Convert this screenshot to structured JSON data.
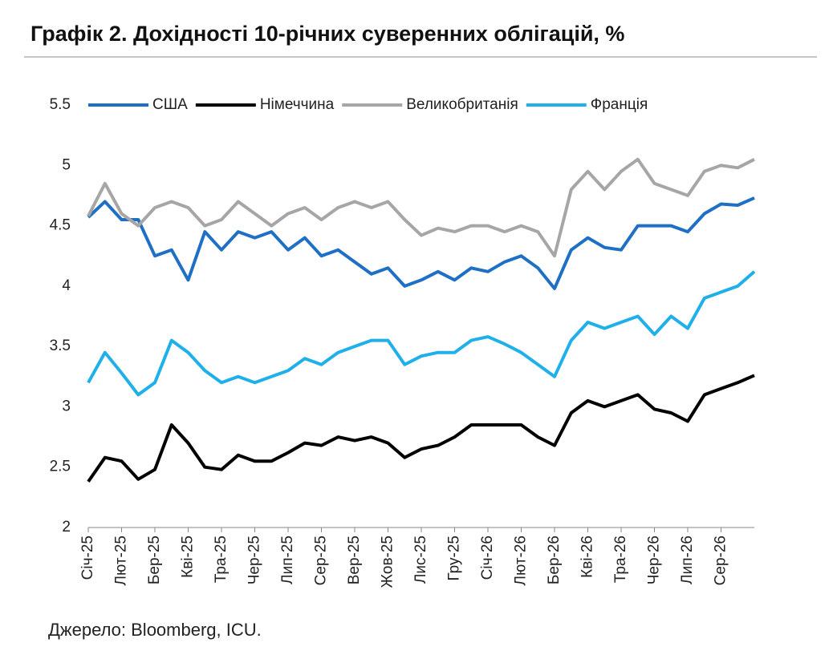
{
  "chart_data": {
    "type": "line",
    "title": "Графік 2. Дохідності 10-річних суверенних облігацій, %",
    "source": "Джерело: Bloomberg, ICU.",
    "categories": [
      "Січ-25",
      null,
      "Лют-25",
      null,
      "Бер-25",
      null,
      "Кві-25",
      null,
      "Тра-25",
      null,
      "Чер-25",
      null,
      "Лип-25",
      null,
      "Сер-25",
      null,
      "Вер-25",
      null,
      "Жов-25",
      null,
      "Лис-25",
      null,
      "Гру-25",
      null,
      "Січ-26",
      null,
      "Лют-26",
      null,
      "Бер-26",
      null,
      "Кві-26",
      null,
      "Тра-26",
      null,
      "Чер-26",
      null,
      "Лип-26",
      null,
      "Сер-26",
      null,
      null
    ],
    "series": [
      {
        "name": "США",
        "color": "#1f6fc5",
        "values": [
          4.57,
          4.7,
          4.55,
          4.55,
          4.25,
          4.3,
          4.05,
          4.45,
          4.3,
          4.45,
          4.4,
          4.45,
          4.3,
          4.4,
          4.25,
          4.3,
          4.2,
          4.1,
          4.15,
          4.0,
          4.05,
          4.12,
          4.05,
          4.15,
          4.12,
          4.2,
          4.25,
          4.15,
          3.98,
          4.3,
          4.4,
          4.32,
          4.3,
          4.5,
          4.5,
          4.5,
          4.45,
          4.6,
          4.68,
          4.67,
          4.73
        ]
      },
      {
        "name": "Німеччина",
        "color": "#000000",
        "values": [
          2.38,
          2.58,
          2.55,
          2.4,
          2.48,
          2.85,
          2.7,
          2.5,
          2.48,
          2.6,
          2.55,
          2.55,
          2.62,
          2.7,
          2.68,
          2.75,
          2.72,
          2.75,
          2.7,
          2.58,
          2.65,
          2.68,
          2.75,
          2.85,
          2.85,
          2.85,
          2.85,
          2.75,
          2.68,
          2.95,
          3.05,
          3.0,
          3.05,
          3.1,
          2.98,
          2.95,
          2.88,
          3.1,
          3.15,
          3.2,
          3.26
        ]
      },
      {
        "name": "Великобританія",
        "color": "#a6a6a6",
        "values": [
          4.58,
          4.85,
          4.6,
          4.5,
          4.65,
          4.7,
          4.65,
          4.5,
          4.55,
          4.7,
          4.6,
          4.5,
          4.6,
          4.65,
          4.55,
          4.65,
          4.7,
          4.65,
          4.7,
          4.55,
          4.42,
          4.48,
          4.45,
          4.5,
          4.5,
          4.45,
          4.5,
          4.45,
          4.25,
          4.8,
          4.95,
          4.8,
          4.95,
          5.05,
          4.85,
          4.8,
          4.75,
          4.95,
          5.0,
          4.98,
          5.05
        ]
      },
      {
        "name": "Франція",
        "color": "#1fb0ea",
        "values": [
          3.2,
          3.45,
          3.28,
          3.1,
          3.2,
          3.55,
          3.45,
          3.3,
          3.2,
          3.25,
          3.2,
          3.25,
          3.3,
          3.4,
          3.35,
          3.45,
          3.5,
          3.55,
          3.55,
          3.35,
          3.42,
          3.45,
          3.45,
          3.55,
          3.58,
          3.52,
          3.45,
          3.35,
          3.25,
          3.55,
          3.7,
          3.65,
          3.7,
          3.75,
          3.6,
          3.75,
          3.65,
          3.9,
          3.95,
          4.0,
          4.12
        ]
      }
    ],
    "ylim": [
      2,
      5.5
    ],
    "yticks": [
      2,
      2.5,
      3,
      3.5,
      4,
      4.5,
      5,
      5.5
    ],
    "grid": false,
    "legend": "top"
  }
}
